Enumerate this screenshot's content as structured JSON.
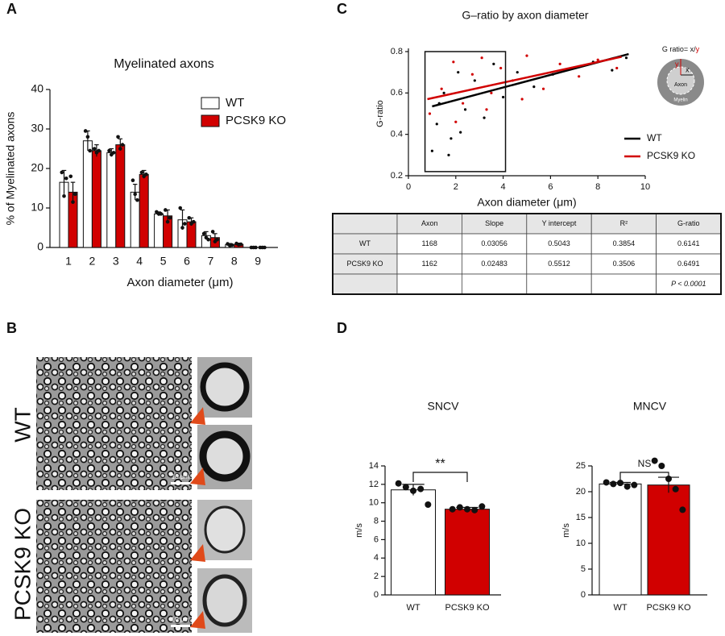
{
  "panel_labels": [
    "A",
    "B",
    "C",
    "D"
  ],
  "chart_data": [
    {
      "type": "bar",
      "title": "Myelinated axons",
      "x_label": "Axon diameter (μm)",
      "y_label": "% of Myelinated axons",
      "categories": [
        "1",
        "2",
        "3",
        "4",
        "5",
        "6",
        "7",
        "8",
        "9"
      ],
      "ylim": [
        0,
        40
      ],
      "yticks": [
        0,
        10,
        20,
        30,
        40
      ],
      "series": [
        {
          "name": "WT",
          "color": "#ffffff",
          "values": [
            16.5,
            27,
            24,
            14,
            8.5,
            7,
            3,
            0.7,
            0
          ],
          "errors": [
            3,
            2.5,
            1,
            2,
            0.5,
            2.5,
            1,
            0.3,
            0
          ],
          "points": [
            [
              19,
              13,
              17.5
            ],
            [
              29.5,
              28,
              24.5
            ],
            [
              24.5,
              23.5,
              24
            ],
            [
              17,
              13.5,
              12
            ],
            [
              9,
              8.5,
              8.5
            ],
            [
              10,
              5,
              6
            ],
            [
              3.5,
              2.5,
              2
            ],
            [
              0.9,
              0.5,
              0.6
            ],
            [
              0,
              0,
              0
            ]
          ]
        },
        {
          "name": "PCSK9 KO",
          "color": "#d10000",
          "values": [
            14,
            24.5,
            26,
            18.5,
            8,
            6.5,
            2.5,
            0.8,
            0
          ],
          "errors": [
            2.5,
            1.5,
            1.5,
            1,
            1.5,
            1,
            1,
            0.3,
            0
          ],
          "points": [
            [
              18,
              11.5,
              13.5
            ],
            [
              25,
              24,
              24.5
            ],
            [
              28,
              25,
              26
            ],
            [
              19,
              18,
              18.5
            ],
            [
              9.5,
              6.5,
              7.5
            ],
            [
              7.5,
              6,
              6.5
            ],
            [
              4,
              1.5,
              2
            ],
            [
              1,
              0.7,
              0.8
            ],
            [
              0,
              0,
              0
            ]
          ]
        }
      ]
    },
    {
      "type": "scatter",
      "title": "G–ratio by axon diameter",
      "x_label": "Axon diameter (μm)",
      "y_label": "G-ratio",
      "xlim": [
        0,
        10
      ],
      "xticks": [
        0,
        2,
        4,
        6,
        8,
        10
      ],
      "ylim": [
        0.2,
        0.8
      ],
      "yticks": [
        0.2,
        0.4,
        0.6,
        0.8
      ],
      "highlight_box": {
        "x": [
          0.7,
          4.1
        ],
        "y": [
          0.22,
          0.8
        ]
      },
      "series": [
        {
          "name": "WT",
          "color": "#000000",
          "x": [
            1.0,
            1.2,
            1.5,
            1.8,
            2.1,
            2.4,
            2.8,
            3.2,
            3.6,
            4.0,
            4.6,
            5.3,
            6.1,
            6.9,
            7.8,
            8.6,
            9.2,
            1.3,
            1.7,
            2.2
          ],
          "values": [
            0.32,
            0.45,
            0.6,
            0.38,
            0.7,
            0.52,
            0.66,
            0.48,
            0.74,
            0.58,
            0.7,
            0.63,
            0.69,
            0.72,
            0.75,
            0.71,
            0.77,
            0.55,
            0.3,
            0.41
          ],
          "fit": {
            "x": [
              1.0,
              9.3
            ],
            "values": [
              0.535,
              0.788
            ]
          }
        },
        {
          "name": "PCSK9 KO",
          "color": "#d10000",
          "x": [
            0.9,
            1.4,
            1.9,
            2.3,
            2.7,
            3.1,
            3.5,
            3.9,
            4.4,
            5.0,
            5.7,
            6.4,
            7.2,
            8.0,
            8.8,
            2.0,
            3.3,
            4.8
          ],
          "values": [
            0.5,
            0.62,
            0.75,
            0.55,
            0.69,
            0.77,
            0.6,
            0.72,
            0.66,
            0.78,
            0.62,
            0.74,
            0.68,
            0.76,
            0.72,
            0.46,
            0.52,
            0.57
          ],
          "fit": {
            "x": [
              0.8,
              9.0
            ],
            "values": [
              0.57,
              0.775
            ]
          }
        }
      ],
      "inset": {
        "formula": "G ratio= x/",
        "formula_y": "y",
        "x_mark": "x",
        "y_mark": "y",
        "axon": "Axon",
        "myelin": "Myelin"
      }
    },
    {
      "type": "bar",
      "title": "SNCV",
      "y_label": "m/s",
      "annotation": "**",
      "categories": [
        "WT",
        "PCSK9 KO"
      ],
      "colors": [
        "#ffffff",
        "#d10000"
      ],
      "values": [
        11.4,
        9.3
      ],
      "errors": [
        0.6,
        0.2
      ],
      "points": [
        [
          12.1,
          11.7,
          11.3,
          11.5,
          9.8
        ],
        [
          9.3,
          9.5,
          9.3,
          9.2,
          9.6
        ]
      ],
      "ylim": [
        0,
        14
      ],
      "yticks": [
        0,
        2,
        4,
        6,
        8,
        10,
        12,
        14
      ]
    },
    {
      "type": "bar",
      "title": "MNCV",
      "y_label": "m/s",
      "annotation": "NS",
      "categories": [
        "WT",
        "PCSK9 KO"
      ],
      "colors": [
        "#ffffff",
        "#d10000"
      ],
      "values": [
        21.5,
        21.3
      ],
      "errors": [
        0.3,
        1.5
      ],
      "points": [
        [
          21.8,
          21.5,
          21.7,
          21.0,
          21.3
        ],
        [
          26,
          25,
          22.5,
          20.5,
          16.5
        ]
      ],
      "ylim": [
        0,
        25
      ],
      "yticks": [
        0,
        5,
        10,
        15,
        20,
        25
      ]
    }
  ],
  "table": {
    "header": [
      "Axon",
      "Slope",
      "Y intercept",
      "R²",
      "G-ratio"
    ],
    "rows": [
      [
        "WT",
        "1168",
        "0.03056",
        "0.5043",
        "0.3854",
        "0.6141"
      ],
      [
        "PCSK9 KO",
        "1162",
        "0.02483",
        "0.5512",
        "0.3506",
        "0.6491"
      ]
    ],
    "p_value": "P < 0.0001"
  },
  "micrographs": {
    "row_labels": [
      "WT",
      "PCSK9 KO"
    ],
    "scale_bars": [
      "10 μm",
      "10 μm"
    ]
  }
}
